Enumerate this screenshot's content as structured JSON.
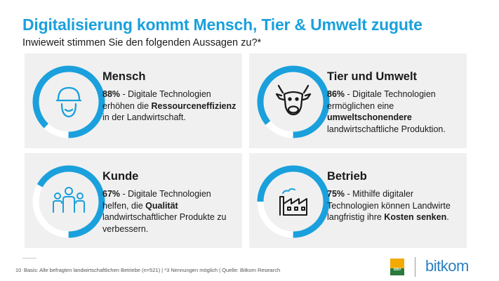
{
  "title": "Digitalisierung kommt Mensch, Tier & Umwelt zugute",
  "subtitle": "Inwieweit stimmen Sie den folgenden Aussagen zu?*",
  "colors": {
    "accent": "#1aa0dc",
    "card_bg": "#f0f0f0",
    "track": "#ffffff",
    "icon": "#1aa0dc"
  },
  "cards": [
    {
      "heading": "Mensch",
      "icon": "farmer-cap-icon",
      "pct": "88%",
      "pre": " - Digitale Technologien erhöhen die ",
      "bold": "Ressourceneffizienz",
      "post": " in der Landwirtschaft."
    },
    {
      "heading": "Tier und Umwelt",
      "icon": "cow-head-icon",
      "pct": "86%",
      "pre": " - Digitale Technologien ermöglichen eine ",
      "bold": "umweltschonendere",
      "post": " landwirtschaftliche Produktion."
    },
    {
      "heading": "Kunde",
      "icon": "people-group-icon",
      "pct": "67%",
      "pre": " - Digitale Technologien helfen, die ",
      "bold": "Qualität",
      "post": " landwirtschaftlicher Produkte zu verbessern."
    },
    {
      "heading": "Betrieb",
      "icon": "factory-icon",
      "pct": "75%",
      "pre": " - Mithilfe digitaler Technologien können Landwirte langfristig ihre ",
      "bold": "Kosten senken",
      "post": "."
    }
  ],
  "chart_data": {
    "type": "pie",
    "title": "Digitalisierung kommt Mensch, Tier & Umwelt zugute",
    "subtitle": "Inwieweit stimmen Sie den folgenden Aussagen zu?*",
    "categories": [
      "Mensch",
      "Tier und Umwelt",
      "Kunde",
      "Betrieb"
    ],
    "values": [
      88,
      86,
      67,
      75
    ],
    "unit": "%",
    "style": "donut-rings"
  },
  "footer": {
    "page_number": "10",
    "source": "Basis: Alle befragten landwirtschaftlichen Betriebe (n=521) | *3 Nennungen möglich | Quelle: Bitkom Research"
  },
  "logos": {
    "dbv": "DBV",
    "bitkom": "bitkom"
  }
}
